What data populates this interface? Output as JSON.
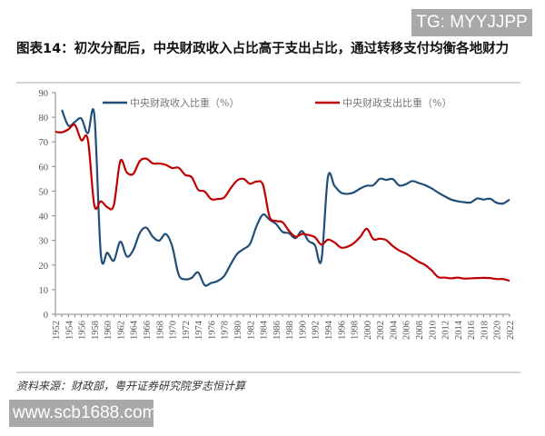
{
  "watermarks": {
    "top": "TG: MYYJJPP",
    "bottom": "www.scb1688.com"
  },
  "title": "图表14：初次分配后，中央财政收入占比高于支出占比，通过转移支付均衡各地财力",
  "source": "资料来源：财政部，粤开证券研究院罗志恒计算",
  "chart_data": {
    "type": "line",
    "title": "",
    "xlabel": "",
    "ylabel": "",
    "ylim": [
      0,
      90
    ],
    "yticks": [
      0,
      10,
      20,
      30,
      40,
      50,
      60,
      70,
      80,
      90
    ],
    "xlim": [
      1952,
      2022
    ],
    "xticks": [
      1952,
      1954,
      1956,
      1958,
      1960,
      1962,
      1964,
      1966,
      1968,
      1970,
      1972,
      1974,
      1976,
      1978,
      1980,
      1982,
      1984,
      1986,
      1988,
      1990,
      1992,
      1994,
      1996,
      1998,
      2000,
      2002,
      2004,
      2006,
      2008,
      2010,
      2012,
      2014,
      2016,
      2018,
      2020,
      2022
    ],
    "grid": false,
    "legend_position": "top",
    "series": [
      {
        "name": "中央财政收入比重（%）",
        "color": "#1f4e79",
        "x": [
          1953,
          1954,
          1955,
          1956,
          1957,
          1958,
          1959,
          1960,
          1961,
          1962,
          1963,
          1964,
          1965,
          1966,
          1967,
          1968,
          1969,
          1970,
          1971,
          1972,
          1973,
          1974,
          1975,
          1976,
          1977,
          1978,
          1979,
          1980,
          1981,
          1982,
          1983,
          1984,
          1985,
          1986,
          1987,
          1988,
          1989,
          1990,
          1991,
          1992,
          1993,
          1994,
          1995,
          1996,
          1997,
          1998,
          1999,
          2000,
          2001,
          2002,
          2003,
          2004,
          2005,
          2006,
          2007,
          2008,
          2009,
          2010,
          2011,
          2012,
          2013,
          2014,
          2015,
          2016,
          2017,
          2018,
          2019,
          2020,
          2021,
          2022
        ],
        "values": [
          83.0,
          76.6,
          78.1,
          79.5,
          73.5,
          80.9,
          24.4,
          25.0,
          21.8,
          29.5,
          23.5,
          26.1,
          33.0,
          35.2,
          31.5,
          29.9,
          32.6,
          27.6,
          16.1,
          14.2,
          14.8,
          17.0,
          11.8,
          12.7,
          13.5,
          15.5,
          20.2,
          24.5,
          26.5,
          28.6,
          35.8,
          40.5,
          38.4,
          36.7,
          33.5,
          32.9,
          30.9,
          33.8,
          29.8,
          28.1,
          22.0,
          55.7,
          52.2,
          49.4,
          48.9,
          49.5,
          51.1,
          52.2,
          52.4,
          55.0,
          54.6,
          54.9,
          52.3,
          52.8,
          54.1,
          53.3,
          52.4,
          51.1,
          49.4,
          47.9,
          46.6,
          45.9,
          45.5,
          45.4,
          47.0,
          46.6,
          46.9,
          45.3,
          45.0,
          46.6
        ]
      },
      {
        "name": "中央财政支出比重（%）",
        "color": "#c00000",
        "x": [
          1952,
          1953,
          1954,
          1955,
          1956,
          1957,
          1958,
          1959,
          1960,
          1961,
          1962,
          1963,
          1964,
          1965,
          1966,
          1967,
          1968,
          1969,
          1970,
          1971,
          1972,
          1973,
          1974,
          1975,
          1976,
          1977,
          1978,
          1979,
          1980,
          1981,
          1982,
          1983,
          1984,
          1985,
          1986,
          1987,
          1988,
          1989,
          1990,
          1991,
          1992,
          1993,
          1994,
          1995,
          1996,
          1997,
          1998,
          1999,
          2000,
          2001,
          2002,
          2003,
          2004,
          2005,
          2006,
          2007,
          2008,
          2009,
          2010,
          2011,
          2012,
          2013,
          2014,
          2015,
          2016,
          2017,
          2018,
          2019,
          2020,
          2021,
          2022
        ],
        "values": [
          74.1,
          73.9,
          75.1,
          76.9,
          70.7,
          71.0,
          44.3,
          45.9,
          43.5,
          44.3,
          62.2,
          57.6,
          57.0,
          62.2,
          63.2,
          61.3,
          61.2,
          60.7,
          59.4,
          59.5,
          56.6,
          55.7,
          50.6,
          49.9,
          46.8,
          46.8,
          47.4,
          51.1,
          54.3,
          55.0,
          53.0,
          53.9,
          52.5,
          39.7,
          37.9,
          37.4,
          33.9,
          31.5,
          32.6,
          32.2,
          31.3,
          28.3,
          30.3,
          29.2,
          27.1,
          27.4,
          28.9,
          31.5,
          34.7,
          30.5,
          30.7,
          30.1,
          27.7,
          25.9,
          24.7,
          23.0,
          21.3,
          20.0,
          17.8,
          15.1,
          14.9,
          14.6,
          14.9,
          14.5,
          14.6,
          14.7,
          14.8,
          14.7,
          14.3,
          14.3,
          13.6
        ]
      }
    ]
  }
}
